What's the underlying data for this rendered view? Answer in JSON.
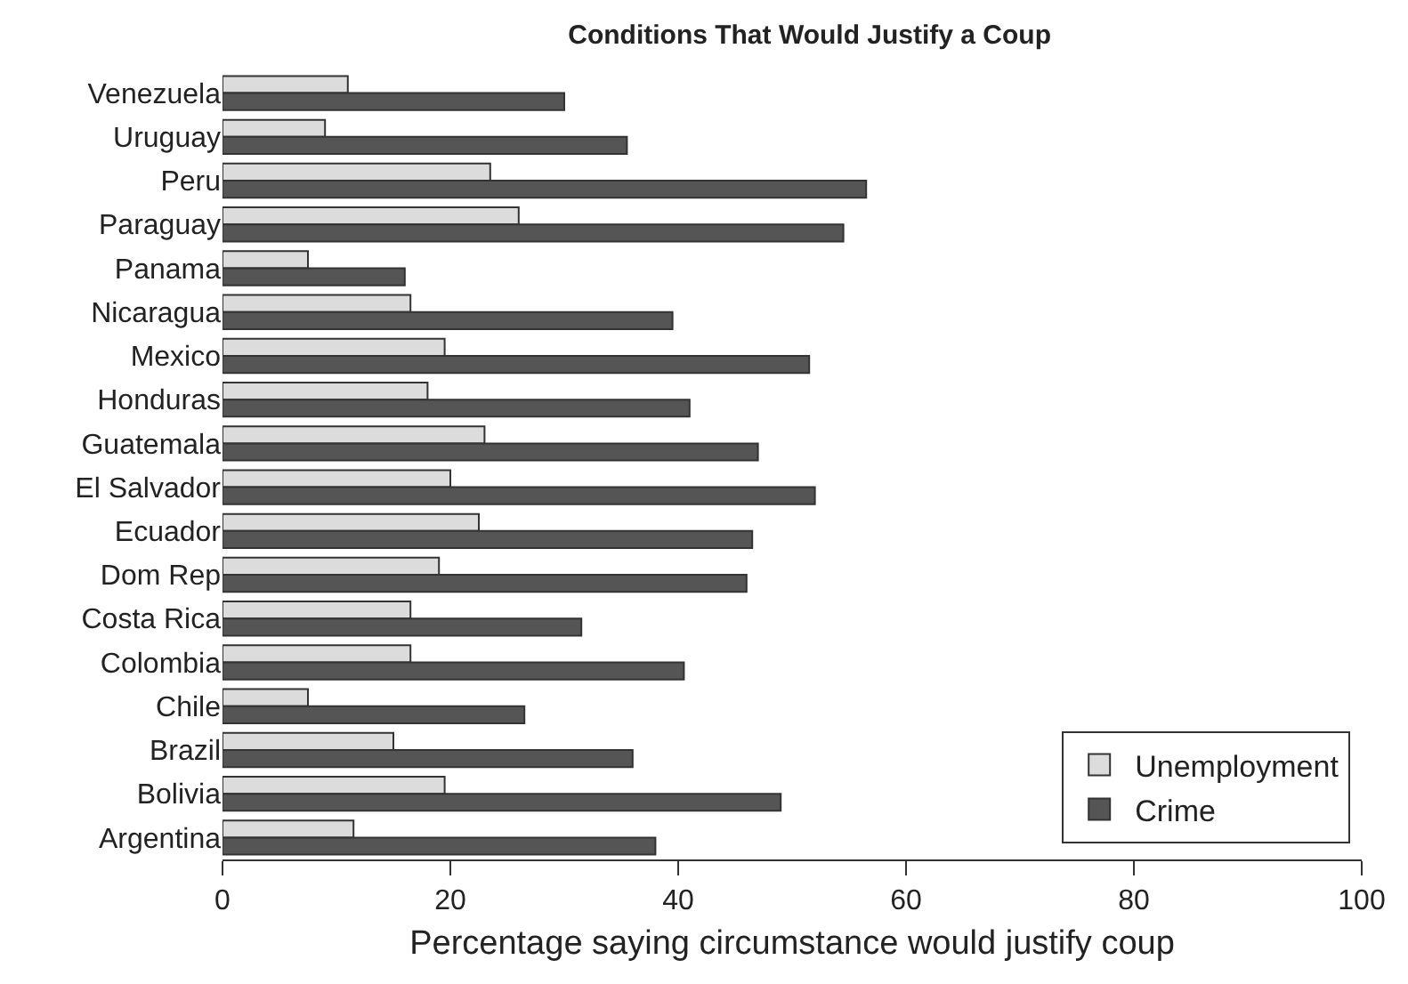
{
  "chart_data": {
    "type": "bar",
    "orientation": "horizontal",
    "title": "Conditions That Would Justify a Coup",
    "xlabel": "Percentage saying circumstance would justify coup",
    "categories": [
      "Venezuela",
      "Uruguay",
      "Peru",
      "Paraguay",
      "Panama",
      "Nicaragua",
      "Mexico",
      "Honduras",
      "Guatemala",
      "El Salvador",
      "Ecuador",
      "Dom Rep",
      "Costa Rica",
      "Colombia",
      "Chile",
      "Brazil",
      "Bolivia",
      "Argentina"
    ],
    "series": [
      {
        "name": "Unemployment",
        "color": "#dcdcdc",
        "values": [
          11,
          9,
          23.5,
          26,
          7.5,
          16.5,
          19.5,
          18,
          23,
          20,
          22.5,
          19,
          16.5,
          16.5,
          7.5,
          15,
          19.5,
          11.5
        ]
      },
      {
        "name": "Crime",
        "color": "#555555",
        "values": [
          30,
          35.5,
          56.5,
          54.5,
          16,
          39.5,
          51.5,
          41,
          47,
          52,
          46.5,
          46,
          31.5,
          40.5,
          26.5,
          36,
          49,
          38
        ]
      }
    ],
    "xlim": [
      0,
      100
    ],
    "xticks": [
      0,
      20,
      40,
      60,
      80,
      100
    ],
    "legend": "bottom right"
  }
}
